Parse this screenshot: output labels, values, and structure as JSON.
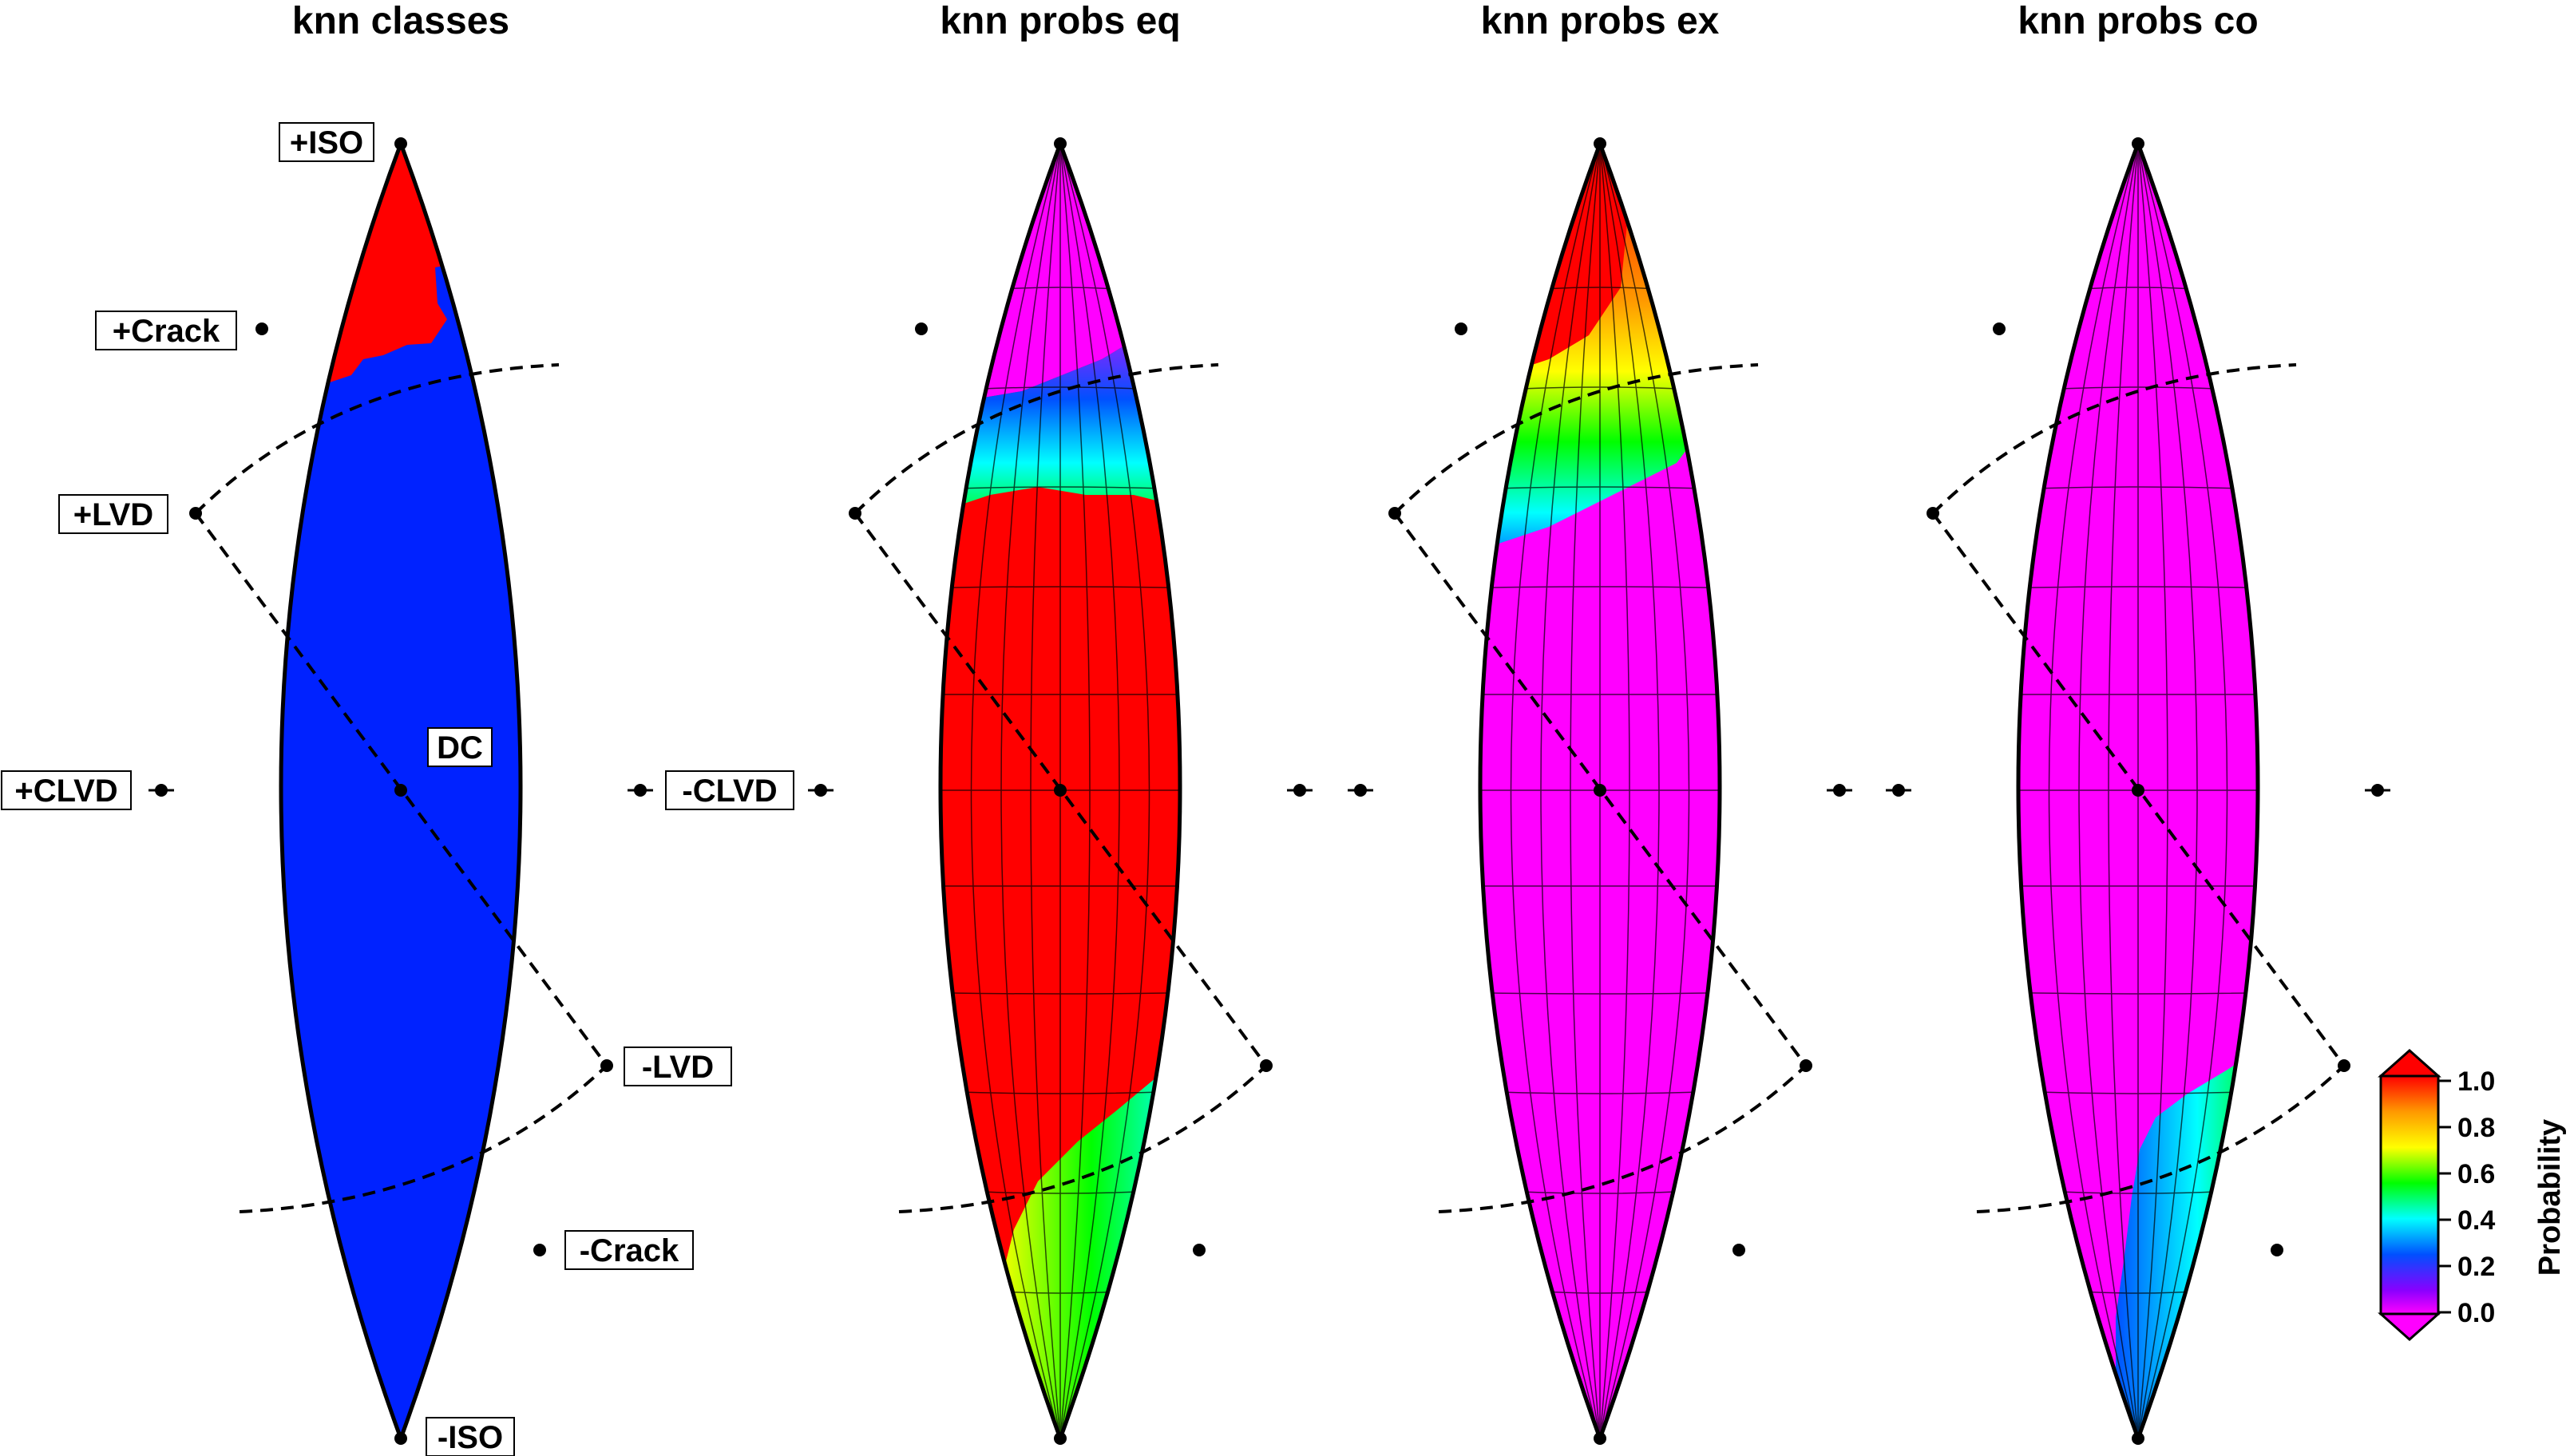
{
  "panels": [
    {
      "title": "knn classes"
    },
    {
      "title": "knn probs eq"
    },
    {
      "title": "knn probs ex"
    },
    {
      "title": "knn probs co"
    }
  ],
  "labels": {
    "iso_pos": "+ISO",
    "crack_pos": "+Crack",
    "lvd_pos": "+LVD",
    "clvd_pos": "+CLVD",
    "dc": "DC",
    "clvd_neg": "-CLVD",
    "lvd_neg": "-LVD",
    "crack_neg": "-Crack",
    "iso_neg": "-ISO"
  },
  "colorbar": {
    "title": "Probability",
    "ticks": [
      "1.0",
      "0.8",
      "0.6",
      "0.4",
      "0.2",
      "0.0"
    ],
    "colors": [
      "#ff0000",
      "#ff9900",
      "#ffff00",
      "#00ff00",
      "#00ffff",
      "#0050ff",
      "#8800ff",
      "#ff00ff"
    ]
  },
  "class_colors": {
    "explosion": "#ff0000",
    "earthquake": "#0022ff",
    "collapse": "#00ffff"
  },
  "field_colors": {
    "high": "#ff0000",
    "low": "#ff00ff"
  }
}
